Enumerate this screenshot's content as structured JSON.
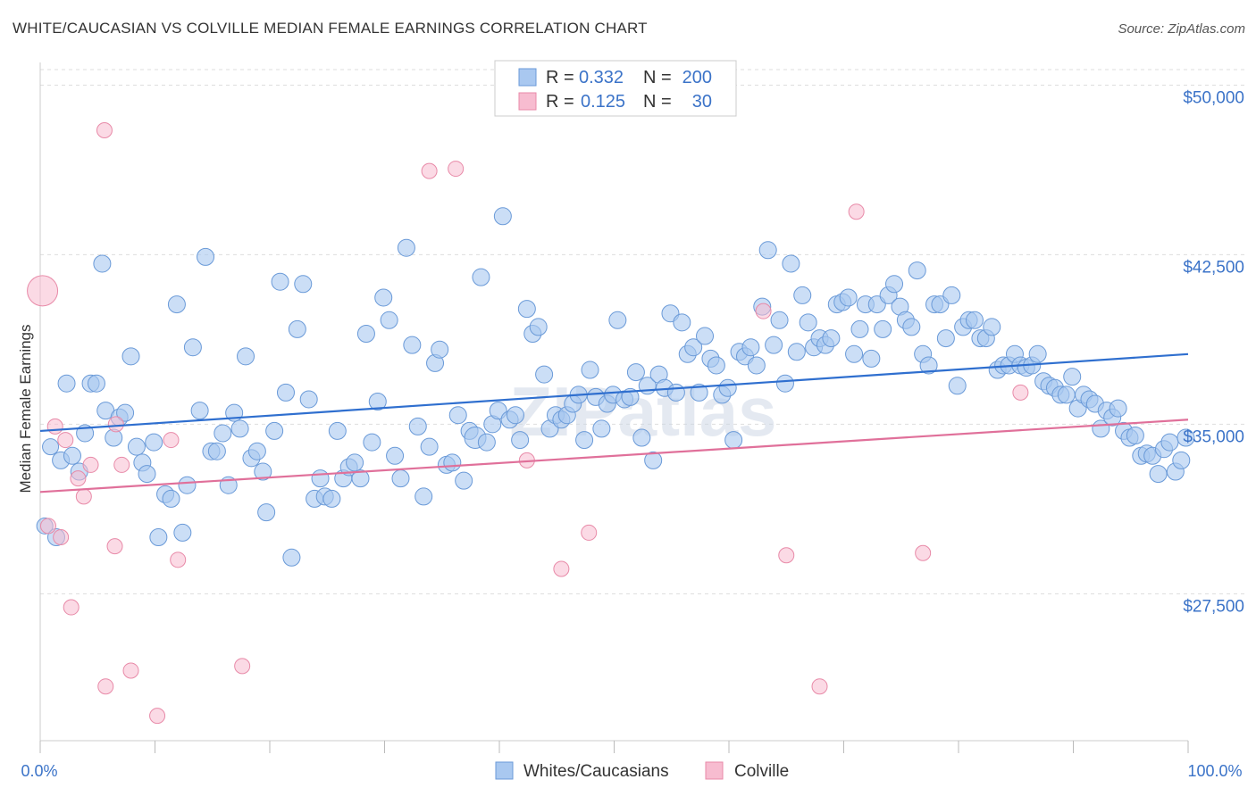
{
  "title": "WHITE/CAUCASIAN VS COLVILLE MEDIAN FEMALE EARNINGS CORRELATION CHART",
  "source": "Source: ZipAtlas.com",
  "watermark": "ZIPatlas",
  "colors": {
    "blue_fill": "#a9c8f0",
    "blue_stroke": "#6a9ad8",
    "blue_line": "#2f6fcf",
    "pink_fill": "#f7bcd0",
    "pink_stroke": "#e88aa8",
    "pink_line": "#e0709a",
    "tick_text": "#3b73c8",
    "grid": "#dddddd"
  },
  "legend": {
    "rows": [
      {
        "r_label": "R =",
        "r_value": "0.332",
        "n_label": "N =",
        "n_value": "200"
      },
      {
        "r_label": "R =",
        "r_value": "0.125",
        "n_label": "N =",
        "n_value": "30"
      }
    ]
  },
  "bottom_legend": [
    "Whites/Caucasians",
    "Colville"
  ],
  "chart_data": {
    "type": "scatter",
    "xlabel": "",
    "ylabel": "Median Female Earnings",
    "xlim": [
      0,
      100
    ],
    "ylim": [
      21000,
      51000
    ],
    "x_tick_labels": [
      "0.0%",
      "100.0%"
    ],
    "y_ticks": [
      {
        "value": 27500,
        "label": "$27,500"
      },
      {
        "value": 35000,
        "label": "$35,000"
      },
      {
        "value": 42500,
        "label": "$42,500"
      },
      {
        "value": 50000,
        "label": "$50,000"
      }
    ],
    "grid": "horizontal dashed",
    "series": [
      {
        "name": "Whites/Caucasians",
        "color": "blue",
        "trend": {
          "x": [
            0,
            100
          ],
          "y": [
            34700,
            38100
          ]
        },
        "points": [
          [
            0.4,
            30.5
          ],
          [
            0.9,
            34
          ],
          [
            1.4,
            30
          ],
          [
            1.8,
            33.4
          ],
          [
            2.3,
            36.8
          ],
          [
            2.8,
            33.6
          ],
          [
            3.4,
            32.9
          ],
          [
            3.9,
            34.6
          ],
          [
            4.4,
            36.8
          ],
          [
            4.9,
            36.8
          ],
          [
            5.4,
            42.1
          ],
          [
            5.7,
            35.6
          ],
          [
            6.4,
            34.4
          ],
          [
            6.9,
            35.3
          ],
          [
            7.4,
            35.5
          ],
          [
            7.9,
            38
          ],
          [
            8.4,
            34
          ],
          [
            8.9,
            33.3
          ],
          [
            9.3,
            32.8
          ],
          [
            9.9,
            34.2
          ],
          [
            10.3,
            30.0
          ],
          [
            10.9,
            31.9
          ],
          [
            11.4,
            31.7
          ],
          [
            11.9,
            40.3
          ],
          [
            12.4,
            30.2
          ],
          [
            12.8,
            32.3
          ],
          [
            13.3,
            38.4
          ],
          [
            13.9,
            35.6
          ],
          [
            14.4,
            42.4
          ],
          [
            14.9,
            33.8
          ],
          [
            15.4,
            33.8
          ],
          [
            15.9,
            34.6
          ],
          [
            16.4,
            32.3
          ],
          [
            16.9,
            35.5
          ],
          [
            17.4,
            34.8
          ],
          [
            17.9,
            38
          ],
          [
            18.4,
            33.5
          ],
          [
            18.9,
            33.8
          ],
          [
            19.4,
            32.9
          ],
          [
            19.7,
            31.1
          ],
          [
            20.4,
            34.7
          ],
          [
            20.9,
            41.3
          ],
          [
            21.4,
            36.4
          ],
          [
            21.9,
            29.1
          ],
          [
            22.4,
            39.2
          ],
          [
            22.9,
            41.2
          ],
          [
            23.4,
            36.1
          ],
          [
            23.9,
            31.7
          ],
          [
            24.4,
            32.6
          ],
          [
            24.8,
            31.8
          ],
          [
            25.4,
            31.7
          ],
          [
            25.9,
            34.7
          ],
          [
            26.4,
            32.6
          ],
          [
            26.9,
            33.1
          ],
          [
            27.4,
            33.3
          ],
          [
            27.9,
            32.6
          ],
          [
            28.4,
            39.0
          ],
          [
            28.9,
            34.2
          ],
          [
            29.4,
            36
          ],
          [
            29.9,
            40.6
          ],
          [
            30.4,
            39.6
          ],
          [
            30.9,
            33.6
          ],
          [
            31.4,
            32.6
          ],
          [
            31.9,
            42.8
          ],
          [
            32.4,
            38.5
          ],
          [
            32.9,
            34.9
          ],
          [
            33.4,
            31.8
          ],
          [
            33.9,
            34.0
          ],
          [
            34.4,
            37.7
          ],
          [
            34.8,
            38.3
          ],
          [
            35.4,
            33.2
          ],
          [
            35.9,
            33.3
          ],
          [
            36.4,
            35.4
          ],
          [
            36.9,
            32.5
          ],
          [
            37.4,
            34.7
          ],
          [
            37.9,
            34.4
          ],
          [
            38.4,
            41.5
          ],
          [
            38.9,
            34.2
          ],
          [
            39.4,
            35.0
          ],
          [
            39.9,
            35.6
          ],
          [
            40.3,
            44.2
          ],
          [
            40.9,
            35.2
          ],
          [
            41.4,
            35.4
          ],
          [
            41.8,
            34.3
          ],
          [
            42.4,
            40.1
          ],
          [
            42.9,
            39.0
          ],
          [
            43.4,
            39.3
          ],
          [
            43.9,
            37.2
          ],
          [
            44.4,
            34.8
          ],
          [
            44.9,
            35.4
          ],
          [
            45.4,
            35.2
          ],
          [
            45.9,
            35.4
          ],
          [
            46.4,
            35.9
          ],
          [
            46.9,
            36.3
          ],
          [
            47.4,
            34.3
          ],
          [
            47.9,
            37.4
          ],
          [
            48.4,
            36.2
          ],
          [
            48.9,
            34.8
          ],
          [
            49.4,
            35.9
          ],
          [
            49.9,
            36.3
          ],
          [
            50.3,
            39.6
          ],
          [
            50.9,
            36.1
          ],
          [
            51.4,
            36.2
          ],
          [
            51.9,
            37.3
          ],
          [
            52.4,
            34.4
          ],
          [
            52.9,
            36.7
          ],
          [
            53.4,
            33.4
          ],
          [
            53.9,
            37.2
          ],
          [
            54.4,
            36.6
          ],
          [
            54.9,
            39.9
          ],
          [
            55.4,
            36.4
          ],
          [
            55.9,
            39.5
          ],
          [
            56.4,
            38.1
          ],
          [
            56.9,
            38.4
          ],
          [
            57.4,
            36.4
          ],
          [
            57.9,
            38.9
          ],
          [
            58.4,
            37.9
          ],
          [
            58.9,
            37.6
          ],
          [
            59.4,
            36.3
          ],
          [
            59.9,
            36.6
          ],
          [
            60.4,
            34.3
          ],
          [
            60.9,
            38.2
          ],
          [
            61.4,
            38.0
          ],
          [
            61.9,
            38.4
          ],
          [
            62.4,
            37.6
          ],
          [
            62.9,
            40.2
          ],
          [
            63.4,
            42.7
          ],
          [
            63.9,
            38.5
          ],
          [
            64.4,
            39.6
          ],
          [
            64.9,
            36.8
          ],
          [
            65.4,
            42.1
          ],
          [
            65.9,
            38.2
          ],
          [
            66.4,
            40.7
          ],
          [
            66.9,
            39.5
          ],
          [
            67.4,
            38.4
          ],
          [
            67.9,
            38.8
          ],
          [
            68.4,
            38.5
          ],
          [
            68.9,
            38.8
          ],
          [
            69.4,
            40.3
          ],
          [
            69.9,
            40.4
          ],
          [
            70.4,
            40.6
          ],
          [
            70.9,
            38.1
          ],
          [
            71.4,
            39.2
          ],
          [
            71.9,
            40.3
          ],
          [
            72.4,
            37.9
          ],
          [
            72.9,
            40.3
          ],
          [
            73.4,
            39.2
          ],
          [
            73.9,
            40.7
          ],
          [
            74.4,
            41.2
          ],
          [
            74.9,
            40.2
          ],
          [
            75.4,
            39.6
          ],
          [
            75.9,
            39.3
          ],
          [
            76.4,
            41.8
          ],
          [
            76.9,
            38.1
          ],
          [
            77.4,
            37.6
          ],
          [
            77.9,
            40.3
          ],
          [
            78.4,
            40.3
          ],
          [
            78.9,
            38.8
          ],
          [
            79.4,
            40.7
          ],
          [
            79.9,
            36.7
          ],
          [
            80.4,
            39.3
          ],
          [
            80.9,
            39.6
          ],
          [
            81.4,
            39.6
          ],
          [
            81.9,
            38.8
          ],
          [
            82.4,
            38.8
          ],
          [
            82.9,
            39.3
          ],
          [
            83.4,
            37.4
          ],
          [
            83.9,
            37.6
          ],
          [
            84.4,
            37.6
          ],
          [
            84.9,
            38.1
          ],
          [
            85.4,
            37.6
          ],
          [
            85.9,
            37.5
          ],
          [
            86.4,
            37.6
          ],
          [
            86.9,
            38.1
          ],
          [
            87.4,
            36.9
          ],
          [
            87.9,
            36.7
          ],
          [
            88.4,
            36.6
          ],
          [
            88.9,
            36.3
          ],
          [
            89.4,
            36.3
          ],
          [
            89.9,
            37.1
          ],
          [
            90.4,
            35.7
          ],
          [
            90.9,
            36.3
          ],
          [
            91.4,
            36.1
          ],
          [
            91.9,
            35.9
          ],
          [
            92.4,
            34.8
          ],
          [
            92.9,
            35.6
          ],
          [
            93.4,
            35.3
          ],
          [
            93.9,
            35.7
          ],
          [
            94.4,
            34.7
          ],
          [
            94.9,
            34.4
          ],
          [
            95.4,
            34.5
          ],
          [
            95.9,
            33.6
          ],
          [
            96.4,
            33.7
          ],
          [
            96.9,
            33.6
          ],
          [
            97.4,
            32.8
          ],
          [
            97.9,
            33.9
          ],
          [
            98.4,
            34.2
          ],
          [
            98.9,
            32.9
          ],
          [
            99.4,
            33.4
          ],
          [
            99.8,
            34.4
          ]
        ]
      },
      {
        "name": "Colville",
        "color": "pink",
        "trend": {
          "x": [
            0,
            100
          ],
          "y": [
            32000,
            35200
          ]
        },
        "points": [
          [
            0.2,
            40.9
          ],
          [
            0.7,
            30.5
          ],
          [
            1.3,
            34.9
          ],
          [
            1.8,
            30.0
          ],
          [
            2.2,
            34.3
          ],
          [
            2.7,
            26.9
          ],
          [
            3.3,
            32.6
          ],
          [
            3.8,
            31.8
          ],
          [
            4.4,
            33.2
          ],
          [
            5.6,
            48.0
          ],
          [
            5.7,
            23.4
          ],
          [
            6.5,
            29.6
          ],
          [
            6.6,
            35.0
          ],
          [
            7.1,
            33.2
          ],
          [
            7.9,
            24.1
          ],
          [
            10.2,
            22.1
          ],
          [
            11.4,
            34.3
          ],
          [
            12.0,
            29.0
          ],
          [
            17.6,
            24.3
          ],
          [
            33.9,
            46.2
          ],
          [
            36.2,
            46.3
          ],
          [
            42.4,
            33.4
          ],
          [
            45.4,
            28.6
          ],
          [
            47.8,
            30.2
          ],
          [
            63.0,
            40.0
          ],
          [
            65.0,
            29.2
          ],
          [
            67.9,
            23.4
          ],
          [
            71.1,
            44.4
          ],
          [
            76.9,
            29.3
          ],
          [
            85.4,
            36.4
          ]
        ]
      }
    ]
  }
}
